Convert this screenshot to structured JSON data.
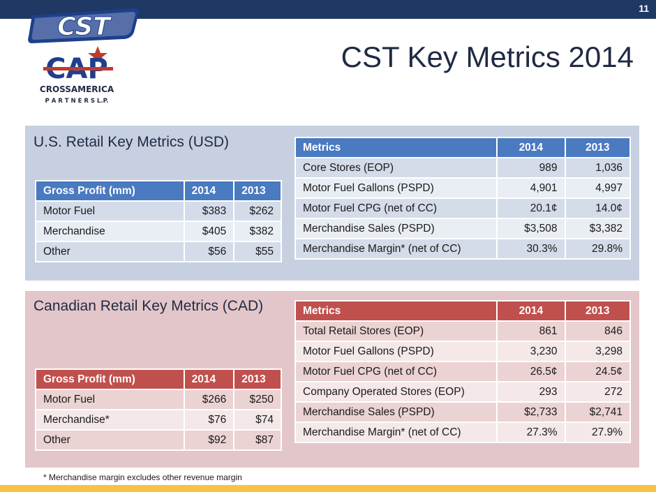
{
  "page_number": "11",
  "title": "CST Key Metrics 2014",
  "logos": {
    "cst": "CST",
    "cap": "CAP",
    "company_line1": "CROSSAMERICA",
    "company_line2": "P A R T N E R S   L.P."
  },
  "colors": {
    "navy": "#1f3864",
    "blue_header": "#4a7ac0",
    "red_header": "#c0504d",
    "gold": "#f6c343"
  },
  "us": {
    "title": "U.S. Retail Key Metrics (USD)",
    "gross_profit": {
      "headers": [
        "Gross Profit (mm)",
        "2014",
        "2013"
      ],
      "rows": [
        [
          "Motor Fuel",
          "$383",
          "$262"
        ],
        [
          "Merchandise",
          "$405",
          "$382"
        ],
        [
          "Other",
          "$56",
          "$55"
        ]
      ]
    },
    "metrics": {
      "headers": [
        "Metrics",
        "2014",
        "2013"
      ],
      "rows": [
        [
          "Core Stores (EOP)",
          "989",
          "1,036"
        ],
        [
          "Motor Fuel Gallons (PSPD)",
          "4,901",
          "4,997"
        ],
        [
          "Motor Fuel CPG (net of CC)",
          "20.1¢",
          "14.0¢"
        ],
        [
          "Merchandise Sales (PSPD)",
          "$3,508",
          "$3,382"
        ],
        [
          "Merchandise Margin* (net of CC)",
          "30.3%",
          "29.8%"
        ]
      ]
    }
  },
  "ca": {
    "title": "Canadian Retail Key Metrics (CAD)",
    "gross_profit": {
      "headers": [
        "Gross Profit (mm)",
        "2014",
        "2013"
      ],
      "rows": [
        [
          "Motor Fuel",
          "$266",
          "$250"
        ],
        [
          "Merchandise*",
          "$76",
          "$74"
        ],
        [
          "Other",
          "$92",
          "$87"
        ]
      ]
    },
    "metrics": {
      "headers": [
        "Metrics",
        "2014",
        "2013"
      ],
      "rows": [
        [
          "Total Retail Stores (EOP)",
          "861",
          "846"
        ],
        [
          "Motor Fuel Gallons (PSPD)",
          "3,230",
          "3,298"
        ],
        [
          "Motor Fuel CPG (net of CC)",
          "26.5¢",
          "24.5¢"
        ],
        [
          "Company Operated Stores (EOP)",
          "293",
          "272"
        ],
        [
          "Merchandise Sales (PSPD)",
          "$2,733",
          "$2,741"
        ],
        [
          "Merchandise Margin* (net of CC)",
          "27.3%",
          "27.9%"
        ]
      ]
    }
  },
  "footnote": "* Merchandise margin excludes other revenue margin"
}
